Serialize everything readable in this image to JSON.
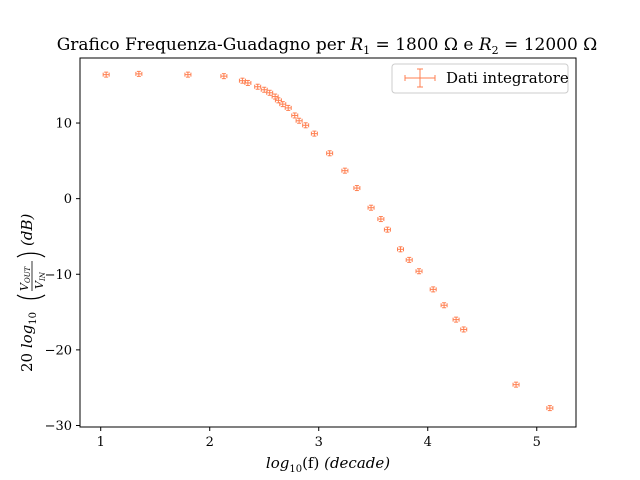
{
  "chart_data": {
    "type": "scatter",
    "title": "Grafico Frequenza-Guadagno per R1 = 1800 Ω e R2 = 12000 Ω",
    "title_parts": {
      "prefix": "Grafico Frequenza-Guadagno per ",
      "r1_symbol": "R",
      "r1_sub": "1",
      "r1_value": " = 1800 Ω e ",
      "r2_symbol": "R",
      "r2_sub": "2",
      "r2_value": " = 12000 Ω"
    },
    "xlabel": "log10(f) (decade)",
    "xlabel_parts": {
      "log": "log",
      "sub": "10",
      "arg": "(f) ",
      "unit": "(decade)"
    },
    "ylabel": "20 log10(VOUT/VIN) (dB)",
    "ylabel_parts": {
      "factor": "20 ",
      "log": "log",
      "sub": "10",
      "num": "V",
      "num_sub": "OUT",
      "den": "V",
      "den_sub": "IN",
      "unit": "(dB)"
    },
    "xlim": [
      0.81,
      5.36
    ],
    "ylim": [
      -30.2,
      18.6
    ],
    "xticks": [
      1,
      2,
      3,
      4,
      5
    ],
    "xtick_labels": [
      "1",
      "2",
      "3",
      "4",
      "5"
    ],
    "yticks": [
      10,
      0,
      -10,
      -20,
      -30
    ],
    "ytick_labels": [
      "10",
      "0",
      "−10",
      "−20",
      "−30"
    ],
    "grid": false,
    "legend_position": "top-right",
    "marker_color": "#ff7f50",
    "series": [
      {
        "name": "Dati integratore",
        "x": [
          1.05,
          1.35,
          1.8,
          2.13,
          2.3,
          2.35,
          2.44,
          2.5,
          2.55,
          2.6,
          2.63,
          2.67,
          2.72,
          2.78,
          2.82,
          2.88,
          2.96,
          3.1,
          3.24,
          3.35,
          3.48,
          3.57,
          3.63,
          3.75,
          3.83,
          3.92,
          4.05,
          4.15,
          4.26,
          4.33,
          4.81,
          5.12
        ],
        "y": [
          16.4,
          16.5,
          16.4,
          16.2,
          15.6,
          15.3,
          14.8,
          14.4,
          14.0,
          13.5,
          13.0,
          12.5,
          12.0,
          11.0,
          10.3,
          9.7,
          8.6,
          6.0,
          3.7,
          1.4,
          -1.2,
          -2.7,
          -4.1,
          -6.7,
          -8.1,
          -9.6,
          -12.0,
          -14.1,
          -16.0,
          -17.3,
          -24.6,
          -27.7
        ]
      }
    ]
  }
}
